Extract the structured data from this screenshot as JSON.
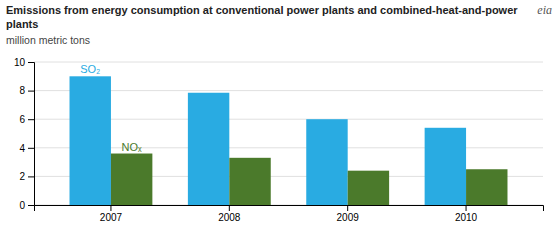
{
  "chart_data": {
    "type": "bar",
    "title": "Emissions from energy consumption at conventional power plants and combined-heat-and-power plants",
    "y_label": "million metric tons",
    "annotations": [
      "eia"
    ],
    "categories": [
      "2007",
      "2008",
      "2009",
      "2010"
    ],
    "series": [
      {
        "name": "SO₂",
        "color": "#29ABE2",
        "values": [
          9.0,
          7.85,
          6.0,
          5.4
        ]
      },
      {
        "name": "NOₓ",
        "color": "#4B7A2B",
        "values": [
          3.6,
          3.3,
          2.4,
          2.5
        ]
      }
    ],
    "ylim": [
      0,
      10
    ],
    "yticks": [
      0,
      2,
      4,
      6,
      8,
      10
    ],
    "grid": true
  }
}
